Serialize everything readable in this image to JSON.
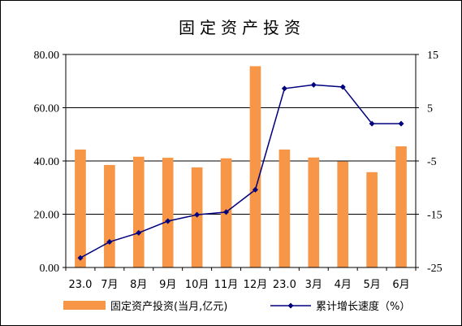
{
  "chart_data": {
    "type": "bar+line",
    "title": "固定资产投资",
    "categories": [
      "23.0",
      "7月",
      "8月",
      "9月",
      "10月",
      "11月",
      "12月",
      "23.0",
      "3月",
      "4月",
      "5月",
      "6月"
    ],
    "series": [
      {
        "name": "固定资产投资(当月,亿元)",
        "type": "bar",
        "axis": "left",
        "color": "#f79646",
        "values": [
          44.3,
          38.5,
          41.6,
          41.2,
          37.6,
          41.0,
          75.6,
          44.3,
          41.3,
          39.8,
          35.8,
          45.5
        ]
      },
      {
        "name": "累计增长速度（%）",
        "type": "line",
        "axis": "right",
        "color": "#00007f",
        "values": [
          -23.2,
          -20.2,
          -18.5,
          -16.3,
          -15.1,
          -14.6,
          -10.4,
          8.6,
          9.3,
          8.9,
          2.0,
          2.0
        ]
      }
    ],
    "y_left": {
      "min": 0,
      "max": 80,
      "ticks": [
        "0.00",
        "20.00",
        "40.00",
        "60.00",
        "80.00"
      ],
      "tick_values": [
        0,
        20,
        40,
        60,
        80
      ]
    },
    "y_right": {
      "min": -25,
      "max": 15,
      "ticks": [
        "-25",
        "-15",
        "-5",
        "5",
        "15"
      ],
      "tick_values": [
        -25,
        -15,
        -5,
        5,
        15
      ]
    },
    "grid": true,
    "legend_position": "bottom"
  }
}
